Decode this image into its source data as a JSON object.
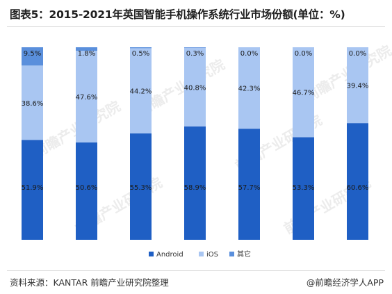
{
  "title": "图表5：2015-2021年英国智能手机操作系统行业市场份额(单位：%)",
  "footer": {
    "source": "资料来源：KANTAR 前瞻产业研究院整理",
    "brand": "@前瞻经济学人APP"
  },
  "watermark": "前瞻产业研究院",
  "colors": {
    "Android": "#1f5fc4",
    "iOS": "#a9c6f2",
    "其它": "#5a8fdc"
  },
  "chart_data": {
    "type": "bar",
    "stacked": true,
    "title": "图表5：2015-2021年英国智能手机操作系统行业市场份额(单位：%)",
    "categories": [
      "",
      "",
      "",
      "",
      "",
      "",
      ""
    ],
    "series": [
      {
        "name": "Android",
        "values": [
          51.9,
          50.6,
          55.3,
          58.9,
          57.7,
          53.3,
          60.6
        ]
      },
      {
        "name": "iOS",
        "values": [
          38.6,
          47.6,
          44.2,
          40.8,
          42.3,
          46.7,
          39.4
        ]
      },
      {
        "name": "其它",
        "values": [
          9.5,
          1.8,
          0.5,
          0.3,
          0.0,
          0.0,
          0.0
        ]
      }
    ],
    "ylim": [
      0,
      100
    ],
    "grid": false,
    "legend": "bottom"
  }
}
